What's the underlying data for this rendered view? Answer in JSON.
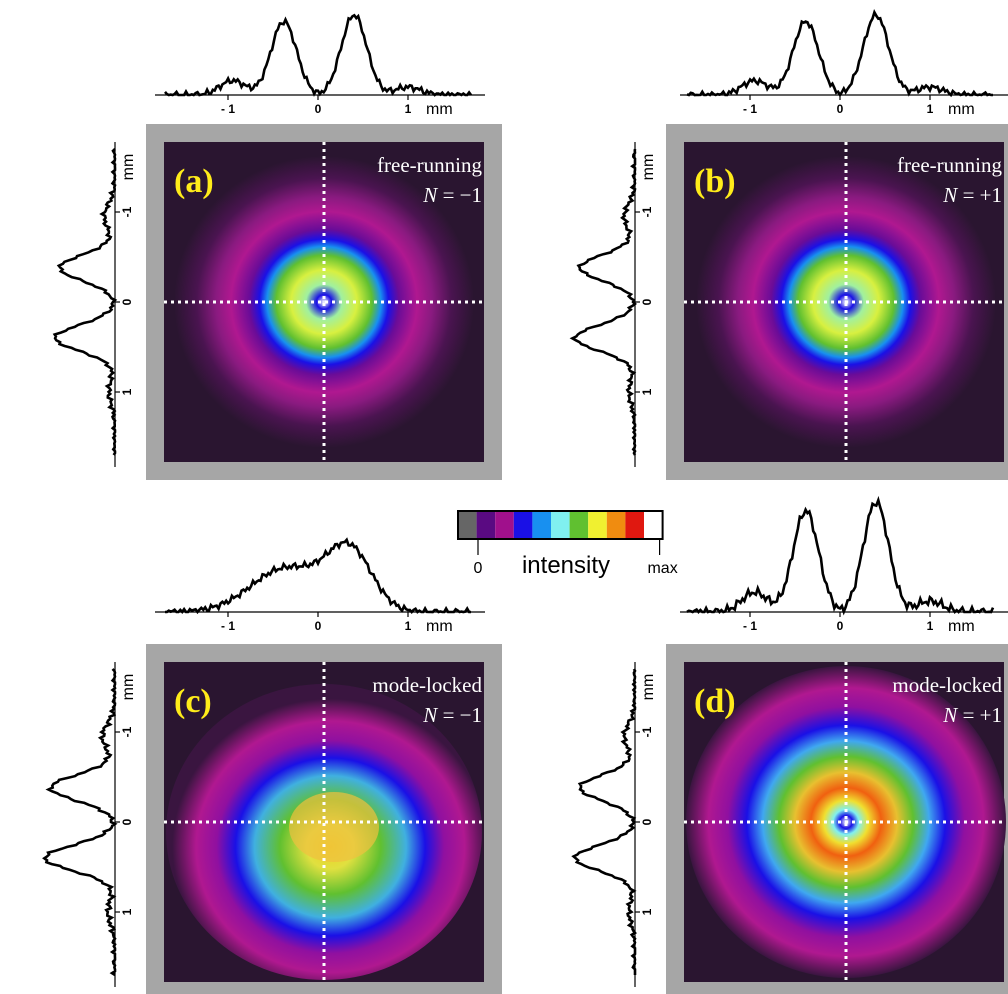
{
  "axis": {
    "unit": "mm",
    "ticks": [
      "- 1",
      "0",
      "1"
    ],
    "vticks": [
      "1",
      "0",
      "-1"
    ]
  },
  "colorbar": {
    "colors": [
      "#666666",
      "#5a0a82",
      "#a0108c",
      "#1a10e6",
      "#1890f0",
      "#80f0f0",
      "#60c030",
      "#f0f030",
      "#f08c10",
      "#e01810",
      "#ffffff"
    ],
    "min_label": "0",
    "title": "intensity",
    "max_label": "max"
  },
  "panels": [
    {
      "label": "(a)",
      "title": "free-running",
      "mode_prefix": "N",
      "mode_value": " = −1",
      "type": "donut",
      "x_profile": "two-lobe",
      "y_profile": "two-lobe"
    },
    {
      "label": "(b)",
      "title": "free-running",
      "mode_prefix": "N",
      "mode_value": " = +1",
      "type": "donut",
      "x_profile": "two-lobe",
      "y_profile": "two-lobe"
    },
    {
      "label": "(c)",
      "title": "mode-locked",
      "mode_prefix": "N",
      "mode_value": " = −1",
      "type": "smeared",
      "x_profile": "single-skewed",
      "y_profile": "two-lobe"
    },
    {
      "label": "(d)",
      "title": "mode-locked",
      "mode_prefix": "N",
      "mode_value": " = +1",
      "type": "donut",
      "x_profile": "two-lobe",
      "y_profile": "two-lobe"
    }
  ],
  "colors": {
    "frame": "#a6a6a6",
    "label_yellow": "#ffec1a",
    "background": "#2a1530",
    "guide": "#ffffff"
  }
}
